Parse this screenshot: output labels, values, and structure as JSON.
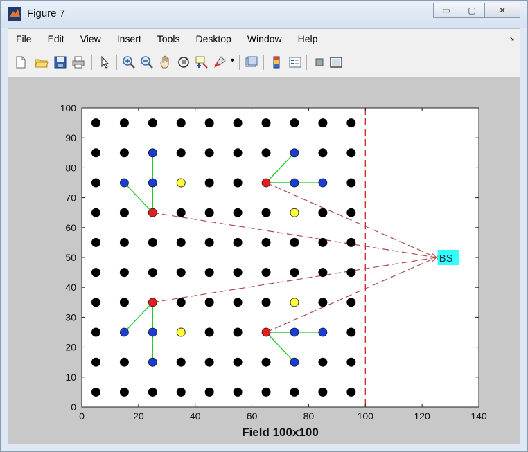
{
  "window": {
    "title": "Figure 7",
    "controls": {
      "minimize": "▭",
      "maximize": "▢",
      "close": "✕"
    }
  },
  "menu": [
    "File",
    "Edit",
    "View",
    "Insert",
    "Tools",
    "Desktop",
    "Window",
    "Help"
  ],
  "toolbar_icons": [
    "new-figure-icon",
    "open-file-icon",
    "save-icon",
    "print-icon",
    "pointer-icon",
    "zoom-in-icon",
    "zoom-out-icon",
    "pan-icon",
    "rotate-3d-icon",
    "data-cursor-icon",
    "brush-icon",
    "dropdown-arrow-icon",
    "link-plot-icon",
    "colorbar-icon",
    "legend-icon",
    "hide-plot-tools-icon",
    "show-plot-tools-icon"
  ],
  "chart_data": {
    "type": "scatter",
    "title": "",
    "xlabel": "Field 100x100",
    "ylabel": "",
    "xlim": [
      0,
      140
    ],
    "ylim": [
      0,
      100
    ],
    "xticks": [
      0,
      20,
      40,
      60,
      80,
      100,
      120,
      140
    ],
    "yticks": [
      0,
      10,
      20,
      30,
      40,
      50,
      60,
      70,
      80,
      90,
      100
    ],
    "grid": false,
    "colors": {
      "normal": "#000000",
      "cluster_head": "#e02020",
      "member": "#1a3fd0",
      "other": "#ffff33",
      "member_link": "#22cc22",
      "bs_link": "#b04a4a",
      "boundary": "#d42020",
      "bs_fill": "#33ffff"
    },
    "grid_x": [
      5,
      15,
      25,
      35,
      45,
      55,
      65,
      75,
      85,
      95
    ],
    "grid_y": [
      5,
      15,
      25,
      35,
      45,
      55,
      65,
      75,
      85,
      95
    ],
    "cluster_heads": [
      [
        25,
        65
      ],
      [
        65,
        75
      ],
      [
        25,
        35
      ],
      [
        65,
        25
      ]
    ],
    "members": [
      [
        25,
        85
      ],
      [
        15,
        75
      ],
      [
        25,
        75
      ],
      [
        75,
        85
      ],
      [
        75,
        75
      ],
      [
        85,
        75
      ],
      [
        15,
        25
      ],
      [
        25,
        25
      ],
      [
        25,
        15
      ],
      [
        75,
        25
      ],
      [
        85,
        25
      ],
      [
        75,
        15
      ]
    ],
    "yellow_nodes": [
      [
        35,
        75
      ],
      [
        75,
        65
      ],
      [
        75,
        35
      ],
      [
        35,
        25
      ]
    ],
    "member_links": [
      [
        [
          25,
          65
        ],
        [
          25,
          85
        ]
      ],
      [
        [
          25,
          65
        ],
        [
          15,
          75
        ]
      ],
      [
        [
          25,
          65
        ],
        [
          25,
          75
        ]
      ],
      [
        [
          65,
          75
        ],
        [
          75,
          85
        ]
      ],
      [
        [
          65,
          75
        ],
        [
          75,
          75
        ]
      ],
      [
        [
          65,
          75
        ],
        [
          85,
          75
        ]
      ],
      [
        [
          25,
          35
        ],
        [
          15,
          25
        ]
      ],
      [
        [
          25,
          35
        ],
        [
          25,
          25
        ]
      ],
      [
        [
          25,
          35
        ],
        [
          25,
          15
        ]
      ],
      [
        [
          65,
          25
        ],
        [
          75,
          25
        ]
      ],
      [
        [
          65,
          25
        ],
        [
          85,
          25
        ]
      ],
      [
        [
          65,
          25
        ],
        [
          75,
          15
        ]
      ]
    ],
    "base_station": {
      "x": 125,
      "y": 50,
      "label": "BS"
    },
    "boundary_x": 100
  }
}
